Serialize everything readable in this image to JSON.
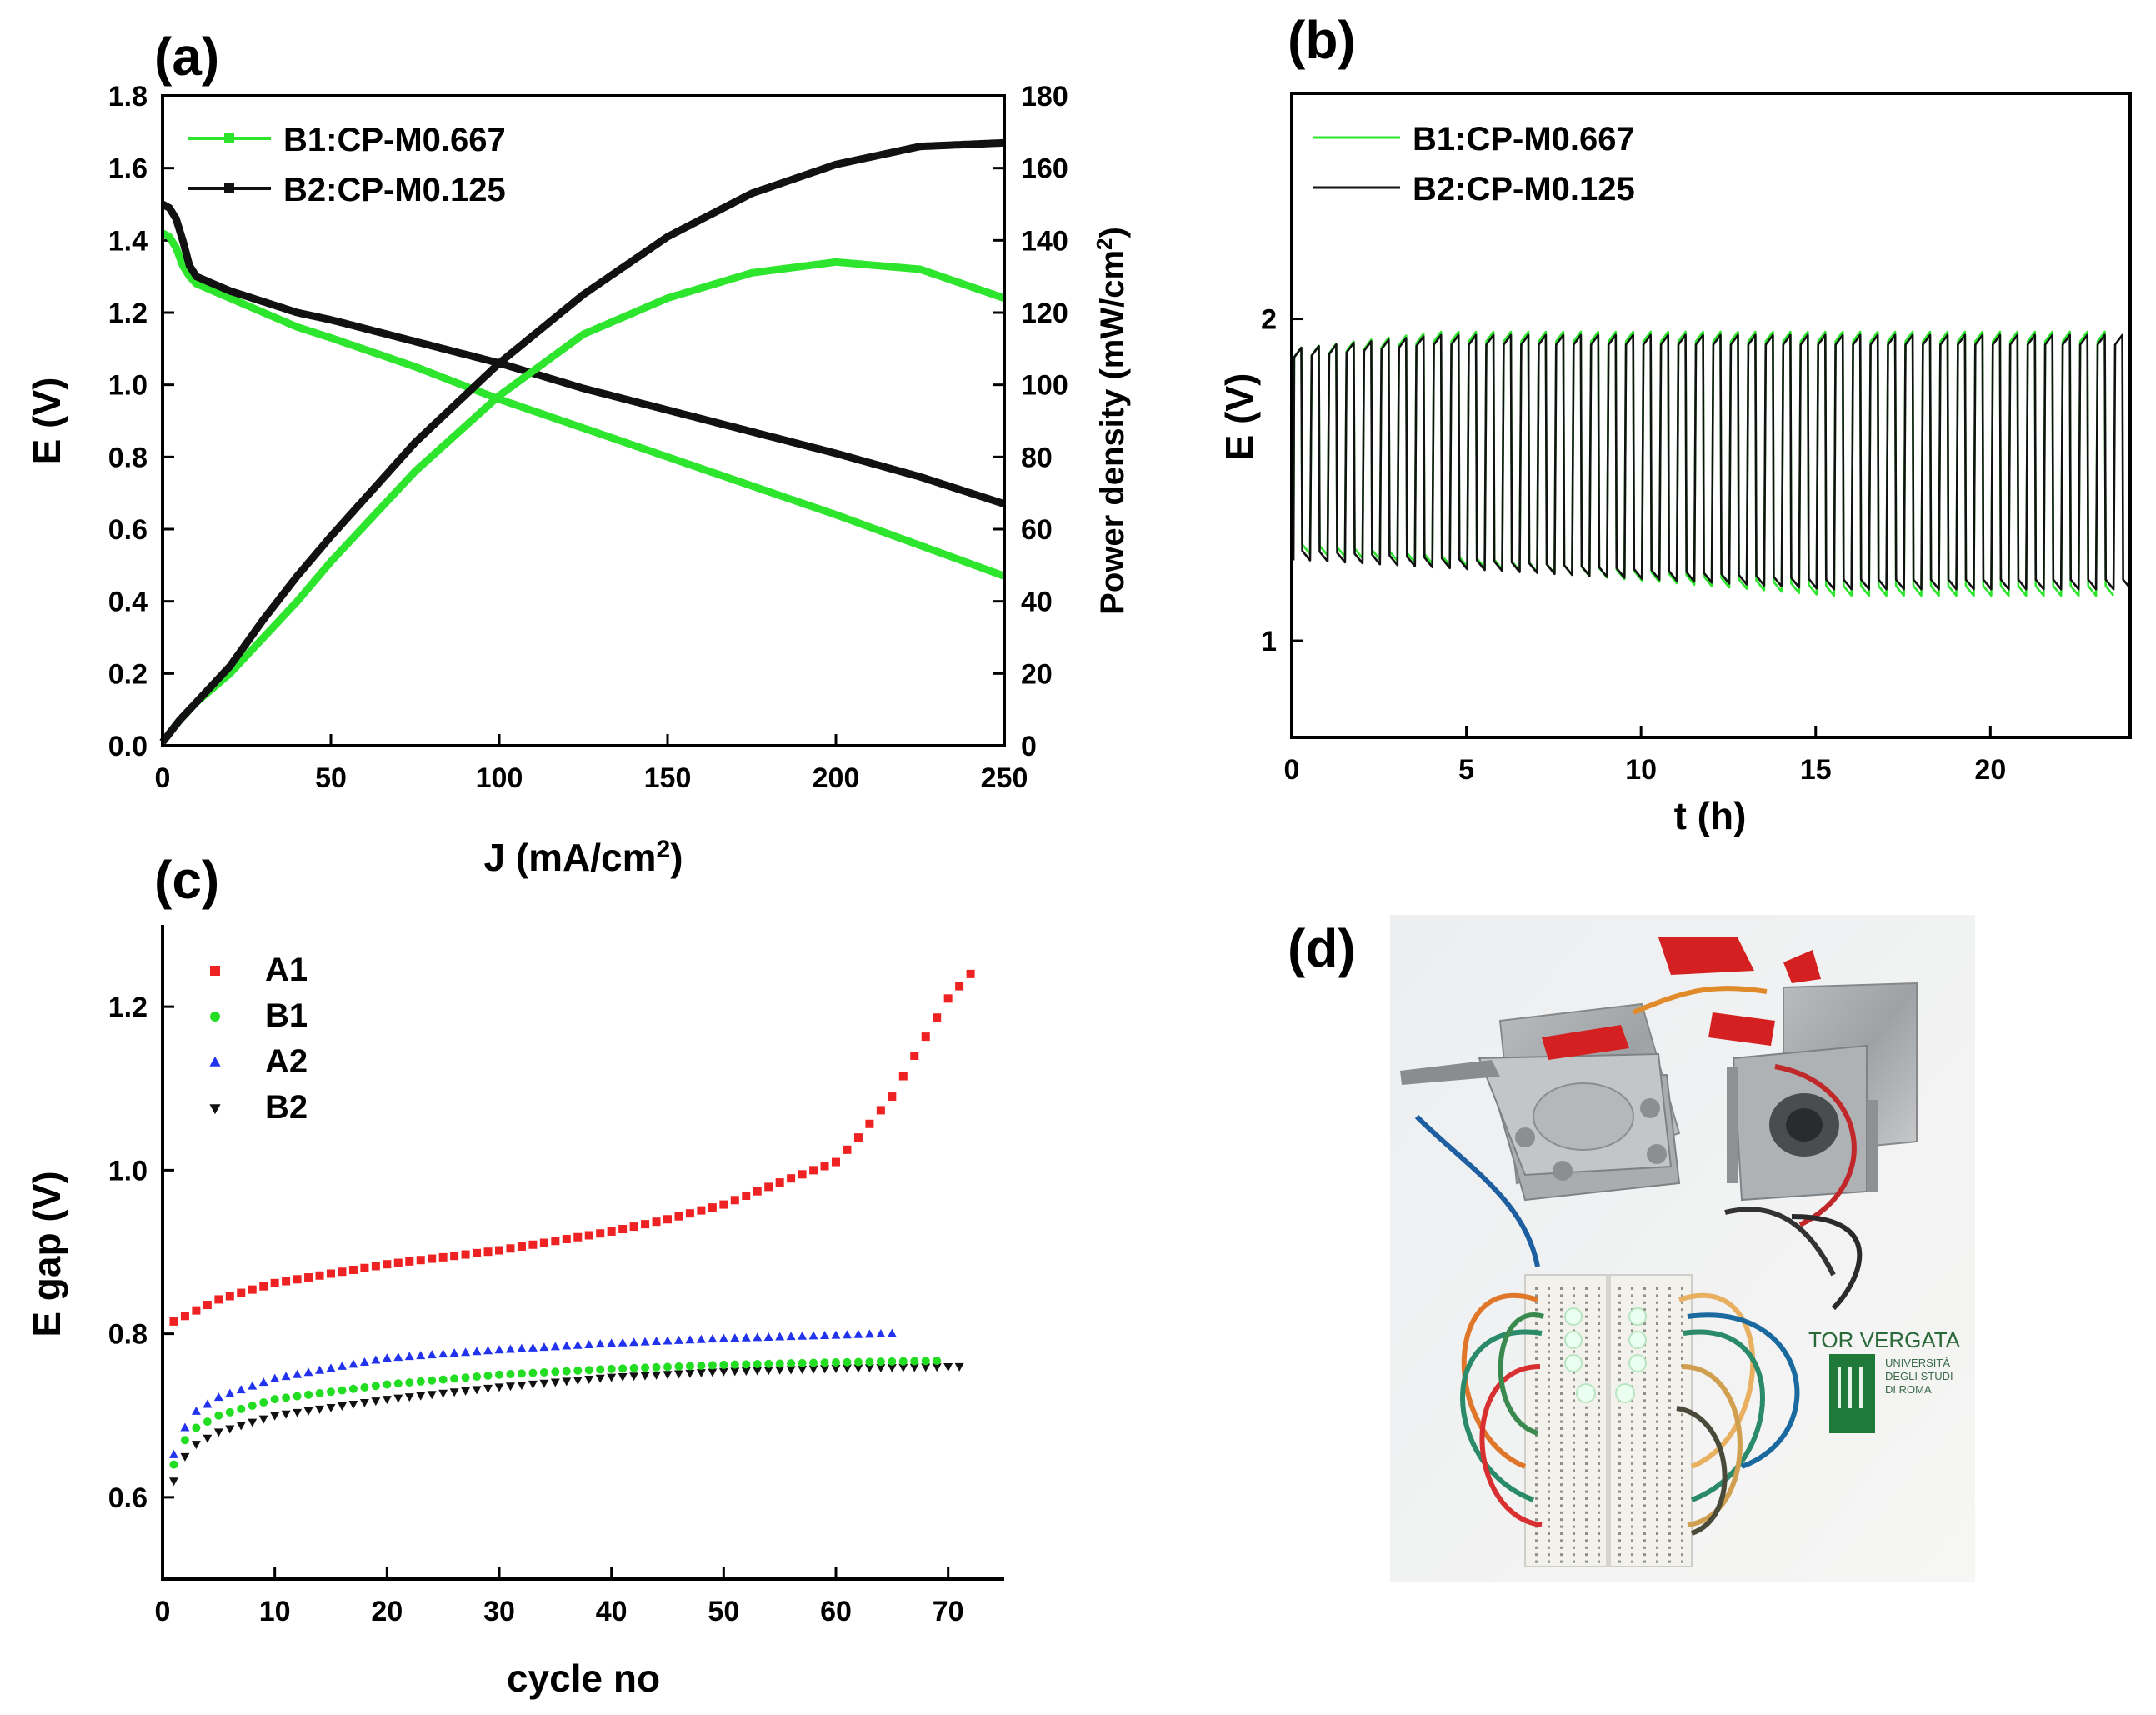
{
  "chart_data": [
    {
      "panel": "(a)",
      "type": "line",
      "xlabel": "J (mA/cm",
      "xlabel_sup": "2",
      "xlabel_end": ")",
      "ylabel_left": "E (V)",
      "ylabel_right": "Power density (mW/cm",
      "ylabel_right_sup": "2",
      "ylabel_right_end": ")",
      "xlim": [
        0,
        250
      ],
      "ylim_left": [
        0.0,
        1.8
      ],
      "ylim_right": [
        0,
        180
      ],
      "xticks": [
        "0",
        "50",
        "100",
        "150",
        "200",
        "250"
      ],
      "yticks_left": [
        "0.0",
        "0.2",
        "0.4",
        "0.6",
        "0.8",
        "1.0",
        "1.2",
        "1.4",
        "1.6",
        "1.8"
      ],
      "yticks_right": [
        "0",
        "20",
        "40",
        "60",
        "80",
        "100",
        "120",
        "140",
        "160",
        "180"
      ],
      "legend": [
        "B1:CP-M0.667",
        "B2:CP-M0.125"
      ],
      "series": [
        {
          "name": "B1:CP-M0.667",
          "kind": "E",
          "color": "#2ee52e",
          "x": [
            0,
            2,
            4,
            6,
            8,
            10,
            15,
            20,
            30,
            40,
            50,
            75,
            100,
            125,
            150,
            175,
            200,
            225,
            250
          ],
          "y": [
            1.42,
            1.41,
            1.38,
            1.33,
            1.3,
            1.28,
            1.26,
            1.24,
            1.2,
            1.16,
            1.13,
            1.05,
            0.96,
            0.88,
            0.8,
            0.72,
            0.64,
            0.555,
            0.47
          ]
        },
        {
          "name": "B2:CP-M0.125",
          "kind": "E",
          "color": "#111111",
          "x": [
            0,
            2,
            4,
            6,
            8,
            10,
            15,
            20,
            30,
            40,
            50,
            75,
            100,
            125,
            150,
            175,
            200,
            225,
            250
          ],
          "y": [
            1.5,
            1.49,
            1.46,
            1.4,
            1.33,
            1.3,
            1.28,
            1.26,
            1.23,
            1.2,
            1.18,
            1.12,
            1.06,
            0.99,
            0.93,
            0.87,
            0.81,
            0.745,
            0.67
          ]
        },
        {
          "name": "B1:CP-M0.667",
          "kind": "P",
          "color": "#2ee52e",
          "x": [
            0,
            5,
            10,
            20,
            30,
            40,
            50,
            75,
            100,
            125,
            150,
            175,
            200,
            225,
            250
          ],
          "y": [
            1,
            7,
            12,
            20,
            30,
            40,
            51,
            76,
            97,
            114,
            124,
            131,
            134,
            132,
            124
          ]
        },
        {
          "name": "B2:CP-M0.125",
          "kind": "P",
          "color": "#111111",
          "x": [
            0,
            5,
            10,
            20,
            30,
            40,
            50,
            75,
            100,
            125,
            150,
            175,
            200,
            225,
            250
          ],
          "y": [
            1,
            7,
            12,
            22,
            35,
            47,
            58,
            84,
            106,
            125,
            141,
            153,
            161,
            166,
            167
          ]
        }
      ]
    },
    {
      "panel": "(b)",
      "type": "line",
      "xlabel": "t (h)",
      "ylabel": "E (V)",
      "xlim": [
        0,
        24
      ],
      "ylim": [
        0.7,
        2.7
      ],
      "xticks": [
        "0",
        "5",
        "10",
        "15",
        "20"
      ],
      "yticks": [
        "1",
        "2"
      ],
      "legend": [
        "B1:CP-M0.667",
        "B2:CP-M0.125"
      ],
      "cycle_period_h": 0.5,
      "series": [
        {
          "name": "B1:CP-M0.667",
          "color": "#2ee52e",
          "end_h": 23.5,
          "charge_v": [
            1.91,
            1.96
          ],
          "discharge_v": [
            1.27,
            1.14
          ]
        },
        {
          "name": "B2:CP-M0.125",
          "color": "#111111",
          "end_h": 24,
          "charge_v": [
            1.91,
            1.95
          ],
          "discharge_v": [
            1.25,
            1.16
          ]
        }
      ]
    },
    {
      "panel": "(c)",
      "type": "scatter",
      "xlabel": "cycle no",
      "ylabel": "E gap (V)",
      "xlim": [
        0,
        75
      ],
      "ylim": [
        0.5,
        1.3
      ],
      "xticks": [
        "0",
        "10",
        "20",
        "30",
        "40",
        "50",
        "60",
        "70"
      ],
      "yticks": [
        "0.6",
        "0.8",
        "1.0",
        "1.2"
      ],
      "legend": [
        "A1",
        "B1",
        "A2",
        "B2"
      ],
      "series": [
        {
          "name": "A1",
          "marker": "square",
          "color": "#ee2222",
          "x_start": 1,
          "x_end": 72,
          "anchors_x": [
            1,
            5,
            10,
            20,
            30,
            40,
            45,
            50,
            55,
            60,
            62,
            65,
            67,
            70,
            72
          ],
          "anchors_y": [
            0.815,
            0.842,
            0.862,
            0.885,
            0.902,
            0.925,
            0.94,
            0.958,
            0.985,
            1.01,
            1.04,
            1.09,
            1.14,
            1.21,
            1.24
          ]
        },
        {
          "name": "B1",
          "marker": "circle",
          "color": "#22dd22",
          "x_start": 1,
          "x_end": 69,
          "anchors_x": [
            1,
            2,
            3,
            5,
            10,
            20,
            30,
            40,
            50,
            60,
            69
          ],
          "anchors_y": [
            0.64,
            0.67,
            0.685,
            0.7,
            0.72,
            0.738,
            0.75,
            0.757,
            0.762,
            0.765,
            0.767
          ]
        },
        {
          "name": "A2",
          "marker": "triangle-up",
          "color": "#2233ee",
          "x_start": 1,
          "x_end": 65,
          "anchors_x": [
            1,
            2,
            3,
            5,
            10,
            20,
            30,
            40,
            50,
            60,
            65
          ],
          "anchors_y": [
            0.652,
            0.685,
            0.705,
            0.722,
            0.745,
            0.77,
            0.78,
            0.788,
            0.794,
            0.798,
            0.8
          ]
        },
        {
          "name": "B2",
          "marker": "triangle-down",
          "color": "#111111",
          "x_start": 1,
          "x_end": 71,
          "anchors_x": [
            1,
            2,
            3,
            5,
            10,
            20,
            30,
            40,
            50,
            60,
            71
          ],
          "anchors_y": [
            0.62,
            0.65,
            0.665,
            0.68,
            0.7,
            0.72,
            0.735,
            0.747,
            0.754,
            0.758,
            0.76
          ]
        }
      ]
    }
  ],
  "photo": {
    "panel": "(d)",
    "logo_text_main": "TOR VERGATA",
    "logo_text_sub": [
      "UNIVERSITÀ",
      "DEGLI STUDI",
      "DI ROMA"
    ]
  }
}
